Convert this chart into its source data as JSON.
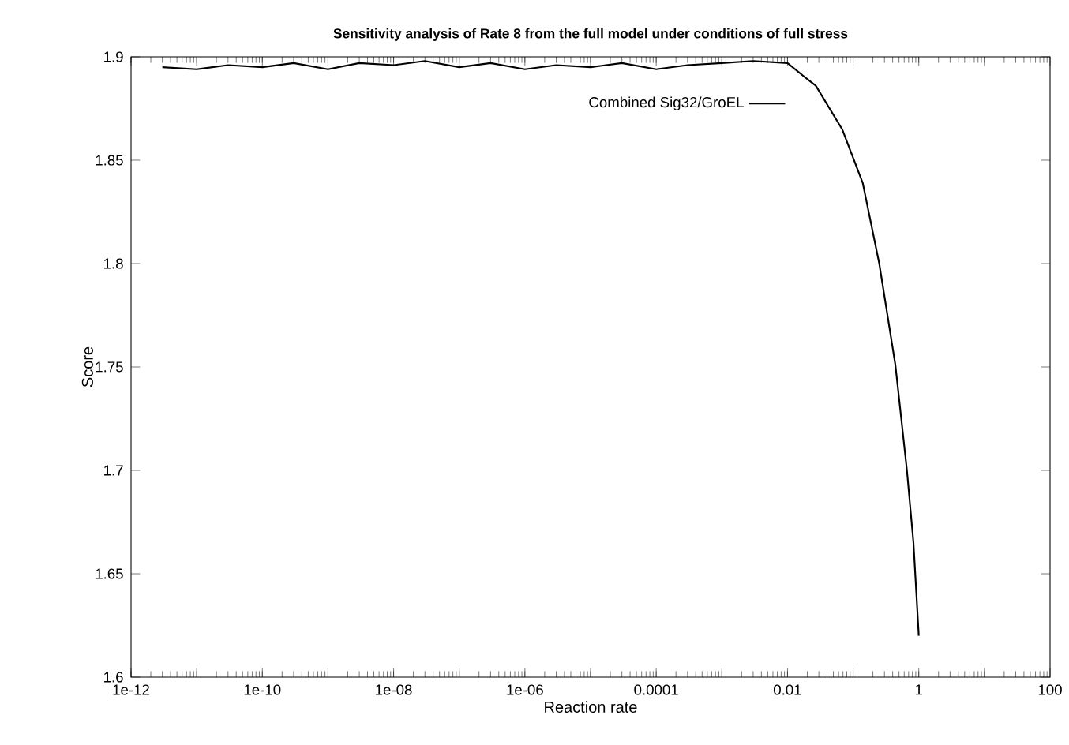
{
  "chart_data": {
    "type": "line",
    "title": "Sensitivity analysis of Rate 8 from the full model under conditions of full stress",
    "xlabel": "Reaction rate",
    "ylabel": "Score",
    "log": "x",
    "xlim": [
      1e-12,
      100
    ],
    "ylim": [
      1.6,
      1.9
    ],
    "xticks": [
      {
        "value": 1e-12,
        "label": "1e-12"
      },
      {
        "value": 1e-11,
        "label": null
      },
      {
        "value": 1e-10,
        "label": "1e-10"
      },
      {
        "value": 1e-09,
        "label": null
      },
      {
        "value": 1e-08,
        "label": "1e-08"
      },
      {
        "value": 1e-07,
        "label": null
      },
      {
        "value": 1e-06,
        "label": "1e-06"
      },
      {
        "value": 1e-05,
        "label": null
      },
      {
        "value": 0.0001,
        "label": "0.0001"
      },
      {
        "value": 0.001,
        "label": null
      },
      {
        "value": 0.01,
        "label": "0.01"
      },
      {
        "value": 0.1,
        "label": null
      },
      {
        "value": 1,
        "label": "1"
      },
      {
        "value": 10,
        "label": null
      },
      {
        "value": 100,
        "label": "100"
      }
    ],
    "yticks": [
      1.6,
      1.65,
      1.7,
      1.75,
      1.8,
      1.85,
      1.9
    ],
    "legend": "top right",
    "line_style": "solid",
    "series": [
      {
        "name": "Combined Sig32/GroEL",
        "color": "#000000",
        "x": [
          3e-12,
          1e-11,
          3e-11,
          1e-10,
          3e-10,
          1e-09,
          3e-09,
          1e-08,
          3e-08,
          1e-07,
          3e-07,
          1e-06,
          3e-06,
          1e-05,
          3e-05,
          0.0001,
          0.0003,
          0.001,
          0.003,
          0.01,
          0.0186,
          0.027,
          0.068,
          0.14,
          0.25,
          0.44,
          0.66,
          0.83,
          1
        ],
        "values": [
          1.895,
          1.894,
          1.896,
          1.895,
          1.897,
          1.894,
          1.897,
          1.896,
          1.898,
          1.895,
          1.897,
          1.894,
          1.896,
          1.895,
          1.897,
          1.894,
          1.896,
          1.897,
          1.898,
          1.897,
          1.89,
          1.886,
          1.865,
          1.839,
          1.8,
          1.751,
          1.7,
          1.665,
          1.62
        ]
      }
    ]
  }
}
